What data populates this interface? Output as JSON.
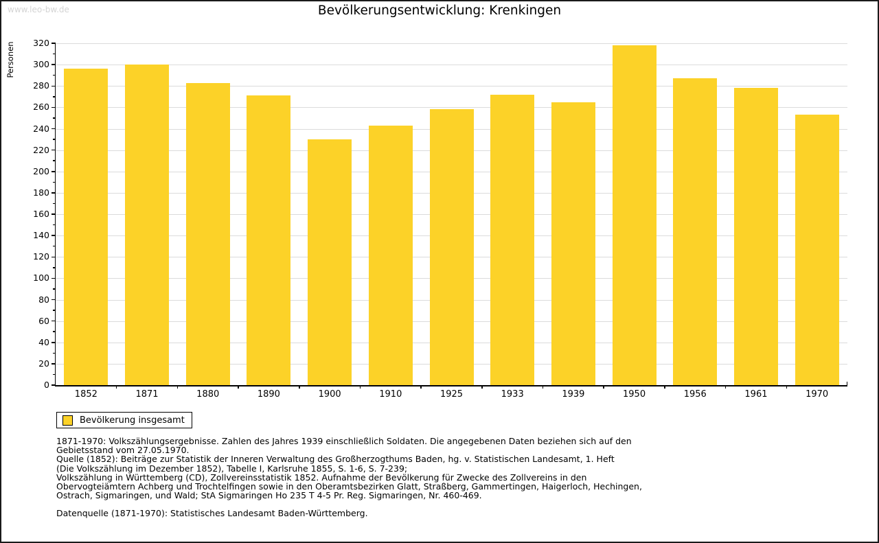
{
  "watermark": "www.leo-bw.de",
  "header": {
    "title": "Bevölkerungsentwicklung: Krenkingen"
  },
  "chart_data": {
    "type": "bar",
    "title": "Bevölkerungsentwicklung: Krenkingen",
    "xlabel": "",
    "ylabel": "Personen",
    "categories": [
      "1852",
      "1871",
      "1880",
      "1890",
      "1900",
      "1910",
      "1925",
      "1933",
      "1939",
      "1950",
      "1956",
      "1961",
      "1970"
    ],
    "series": [
      {
        "name": "Bevölkerung insgesamt",
        "values": [
          296,
          300,
          283,
          271,
          230,
          243,
          258,
          272,
          265,
          318,
          287,
          278,
          253
        ]
      }
    ],
    "ylim": [
      0,
      320
    ],
    "ytick_step": 20,
    "yminor_step": 10,
    "grid": true,
    "legend_position": "bottom-left",
    "bar_color": "#FCD228"
  },
  "legend": {
    "label": "Bevölkerung insgesamt",
    "swatch_color": "#FCD228"
  },
  "footer": {
    "lines": [
      "1871-1970: Volkszählungsergebnisse. Zahlen des Jahres 1939 einschließlich Soldaten. Die angegebenen Daten beziehen sich auf den",
      "Gebietsstand vom 27.05.1970.",
      "Quelle (1852): Beiträge zur Statistik der Inneren Verwaltung des Großherzogthums Baden, hg. v. Statistischen Landesamt, 1. Heft",
      "(Die Volkszählung im Dezember 1852), Tabelle I, Karlsruhe 1855, S. 1-6, S. 7-239;",
      "Volkszählung in Württemberg (CD), Zollvereinsstatistik 1852. Aufnahme der Bevölkerung für Zwecke des Zollvereins in den",
      "Obervogteiämtern Achberg und Trochtelfingen sowie in den Oberamtsbezirken Glatt, Straßberg, Gammertingen, Haigerloch, Hechingen,",
      "Ostrach, Sigmaringen, und Wald; StA Sigmaringen Ho 235 T 4-5 Pr. Reg. Sigmaringen, Nr. 460-469."
    ],
    "source_line": "Datenquelle (1871-1970): Statistisches Landesamt Baden-Württemberg."
  },
  "colors": {
    "bar": "#FCD228",
    "grid": "#DBDBDB",
    "axis": "#000000",
    "watermark": "#D4D4D4",
    "background": "#FFFFFF"
  }
}
